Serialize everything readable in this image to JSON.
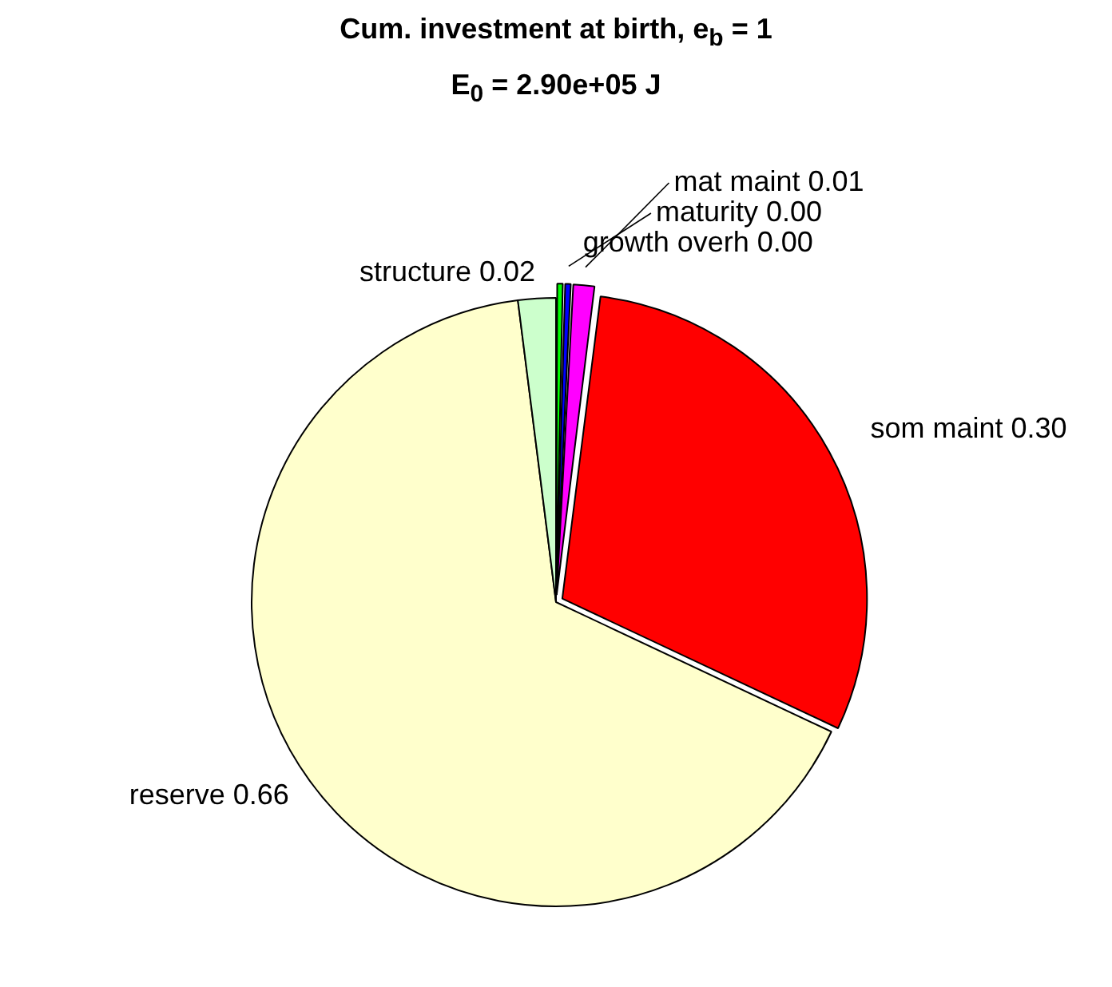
{
  "chart_data": {
    "type": "pie",
    "title": "Cum. investment at birth, e$_{b}$ = 1",
    "subtitle": "E$_{0}$ = 2.90e+05 J",
    "categories": [
      "growth overh",
      "maturity",
      "mat maint",
      "som maint",
      "reserve",
      "structure"
    ],
    "values": [
      0.004,
      0.004,
      0.012,
      0.3,
      0.66,
      0.02
    ],
    "value_labels": [
      "0.00",
      "0.00",
      "0.01",
      "0.30",
      "0.66",
      "0.02"
    ],
    "colors": [
      "#00ff00",
      "#0000ff",
      "#ff00ff",
      "#ff0000",
      "#ffffcc",
      "#ccffcc"
    ],
    "legend": false
  }
}
